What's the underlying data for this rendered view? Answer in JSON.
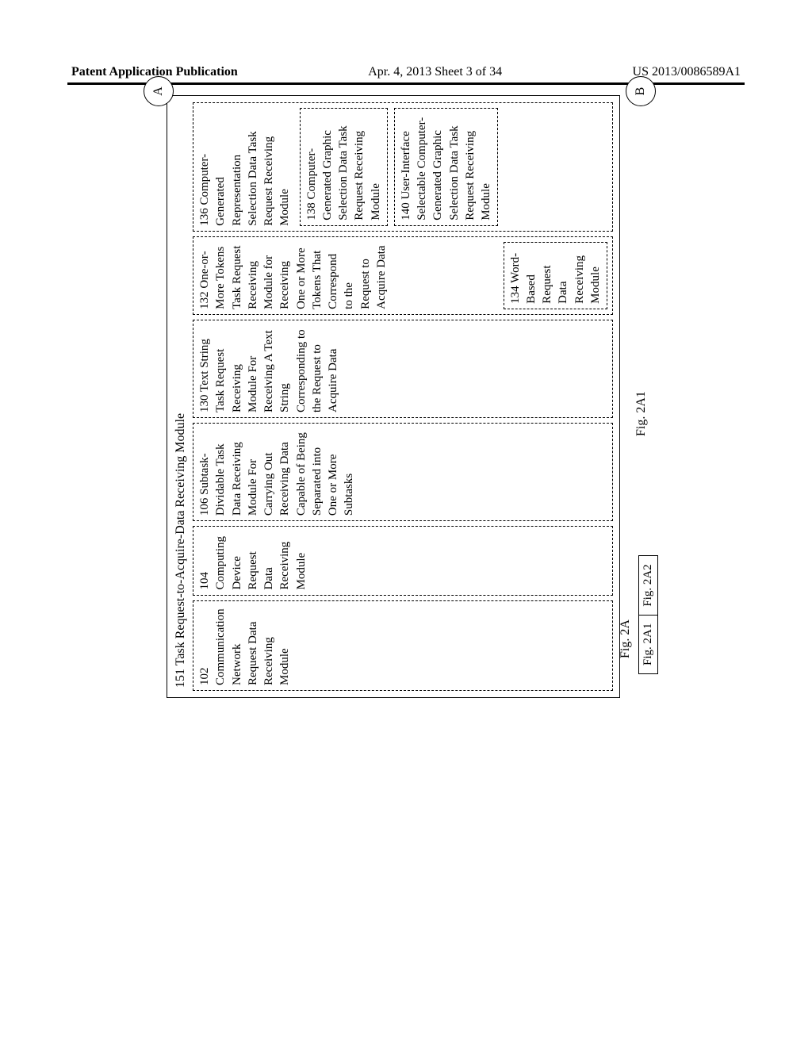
{
  "header": {
    "left": "Patent Application Publication",
    "center": "Apr. 4, 2013  Sheet 3 of 34",
    "right": "US 2013/0086589A1"
  },
  "diagram": {
    "main_title": "151 Task Request-to-Acquire-Data Receiving Module",
    "box_102": "102 Communication Network Request Data Receiving Module",
    "box_104": "104 Computing Device Request Data Receiving Module",
    "box_106": "106 Subtask-Dividable Task Data Receiving Module For Carrying Out Receiving Data Capable of Being Separated into One or More Subtasks",
    "box_130": "130 Text String Task Request Receiving Module For Receiving A Text String Corresponding to the Request to Acquire Data",
    "box_132": "132 One-or-More Tokens Task Request Receiving Module for Receiving One or More Tokens That Correspond to the Request to Acquire Data",
    "box_134": "134 Word-Based Request Data Receiving Module",
    "box_136": "136 Computer-Generated Representation Selection Data Task Request Receiving Module",
    "box_138": "138 Computer-Generated Graphic Selection Data Task Request Receiving Module",
    "box_140": "140 User-Interface Selectable Computer-Generated Graphic Selection Data Task Request Receiving Module",
    "connector_a": "A",
    "connector_b": "B",
    "fig_2a": "Fig. 2A",
    "fig_2a1_label": "Fig. 2A1",
    "key_left": "Fig. 2A1",
    "key_right": "Fig. 2A2"
  },
  "colors": {
    "background": "#ffffff",
    "line": "#000000"
  }
}
